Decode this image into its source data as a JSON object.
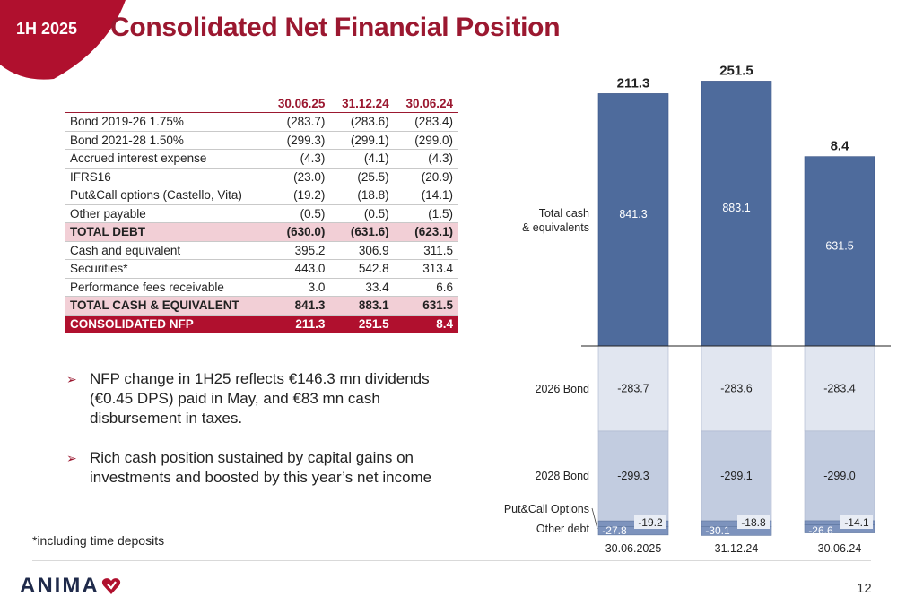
{
  "header": {
    "period": "1H 2025",
    "title": "Consolidated Net Financial Position"
  },
  "table": {
    "columns": [
      "30.06.25",
      "31.12.24",
      "30.06.24"
    ],
    "rows": [
      {
        "label": "Bond 2019-26 1.75%",
        "values": [
          "(283.7)",
          "(283.6)",
          "(283.4)"
        ],
        "style": "normal"
      },
      {
        "label": "Bond 2021-28 1.50%",
        "values": [
          "(299.3)",
          "(299.1)",
          "(299.0)"
        ],
        "style": "normal"
      },
      {
        "label": "Accrued interest expense",
        "values": [
          "(4.3)",
          "(4.1)",
          "(4.3)"
        ],
        "style": "normal"
      },
      {
        "label": "IFRS16",
        "values": [
          "(23.0)",
          "(25.5)",
          "(20.9)"
        ],
        "style": "normal"
      },
      {
        "label": "Put&Call options (Castello, Vita)",
        "values": [
          "(19.2)",
          "(18.8)",
          "(14.1)"
        ],
        "style": "normal"
      },
      {
        "label": "Other payable",
        "values": [
          "(0.5)",
          "(0.5)",
          "(1.5)"
        ],
        "style": "normal"
      },
      {
        "label": "TOTAL DEBT",
        "values": [
          "(630.0)",
          "(631.6)",
          "(623.1)"
        ],
        "style": "sub"
      },
      {
        "label": "Cash and equivalent",
        "values": [
          "395.2",
          "306.9",
          "311.5"
        ],
        "style": "normal"
      },
      {
        "label": "Securities*",
        "values": [
          "443.0",
          "542.8",
          "313.4"
        ],
        "style": "normal"
      },
      {
        "label": "Performance fees receivable",
        "values": [
          "3.0",
          "33.4",
          "6.6"
        ],
        "style": "normal"
      },
      {
        "label": "TOTAL CASH & EQUIVALENT",
        "values": [
          "841.3",
          "883.1",
          "631.5"
        ],
        "style": "sub"
      },
      {
        "label": "CONSOLIDATED NFP",
        "values": [
          "211.3",
          "251.5",
          "8.4"
        ],
        "style": "total"
      }
    ]
  },
  "bullets": [
    "NFP change in 1H25 reflects €146.3 mn dividends (€0.45 DPS) paid in May, and €83 mn cash disbursement in taxes.",
    "Rich cash position sustained by capital gains on investments and boosted by this year’s net income"
  ],
  "footnote": "*including time deposits",
  "footer": {
    "logo": "ANIMA",
    "page": "12"
  },
  "colors": {
    "brand": "#9b1830",
    "cash": "#4e6b9c",
    "bond26": "#e1e6f0",
    "bond28": "#c2cce0",
    "other": "#7d93bd"
  },
  "chart_data": {
    "type": "bar",
    "stacked": true,
    "categories": [
      "30.06.2025",
      "31.12.24",
      "30.06.24"
    ],
    "series": [
      {
        "name": "Total cash & equivalents",
        "values": [
          841.3,
          883.1,
          631.5
        ],
        "labels": [
          "841.3",
          "883.1",
          "631.5"
        ]
      },
      {
        "name": "2026 Bond",
        "values": [
          -283.7,
          -283.6,
          -283.4
        ],
        "labels": [
          "-283.7",
          "-283.6",
          "-283.4"
        ]
      },
      {
        "name": "2028 Bond",
        "values": [
          -299.3,
          -299.1,
          -299.0
        ],
        "labels": [
          "-299.3",
          "-299.1",
          "-299.0"
        ]
      },
      {
        "name": "Put&Call Options",
        "values": [
          -19.2,
          -18.8,
          -14.1
        ],
        "labels": [
          "-19.2",
          "-18.8",
          "-14.1"
        ]
      },
      {
        "name": "Other debt",
        "values": [
          -27.8,
          -30.1,
          -26.6
        ],
        "labels": [
          "-27.8",
          "-30.1",
          "-26.6"
        ]
      }
    ],
    "totals": [
      211.3,
      251.5,
      8.4
    ],
    "total_labels": [
      "211.3",
      "251.5",
      "8.4"
    ],
    "side_labels": [
      "Total cash\n& equivalents",
      "2026 Bond",
      "2028 Bond",
      "Put&Call Options",
      "Other debt"
    ]
  }
}
